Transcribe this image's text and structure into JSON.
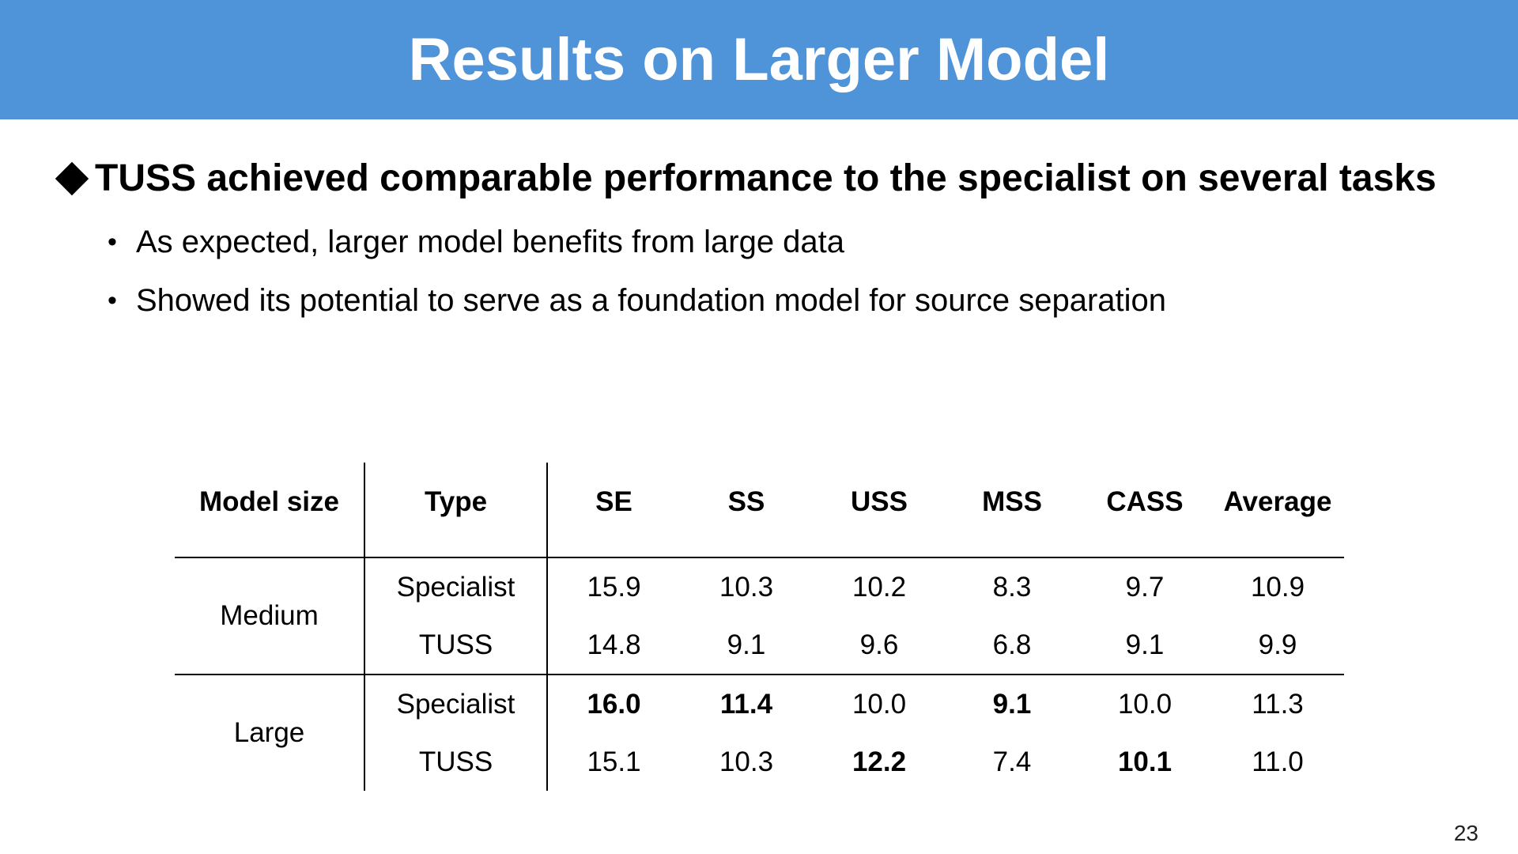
{
  "title": "Results on Larger Model",
  "headline": "TUSS achieved comparable performance to the specialist on several tasks",
  "bullets": [
    "As expected, larger model benefits from large data",
    "Showed its potential to serve as a foundation model for source separation"
  ],
  "table": {
    "headers": [
      "Model size",
      "Type",
      "SE",
      "SS",
      "USS",
      "MSS",
      "CASS",
      "Average"
    ],
    "groups": [
      {
        "size": "Medium",
        "rows": [
          {
            "type": "Specialist",
            "values": [
              "15.9",
              "10.3",
              "10.2",
              "8.3",
              "9.7",
              "10.9"
            ],
            "bold": [
              false,
              false,
              false,
              false,
              false,
              false
            ]
          },
          {
            "type": "TUSS",
            "values": [
              "14.8",
              "9.1",
              "9.6",
              "6.8",
              "9.1",
              "9.9"
            ],
            "bold": [
              false,
              false,
              false,
              false,
              false,
              false
            ]
          }
        ]
      },
      {
        "size": "Large",
        "rows": [
          {
            "type": "Specialist",
            "values": [
              "16.0",
              "11.4",
              "10.0",
              "9.1",
              "10.0",
              "11.3"
            ],
            "bold": [
              true,
              true,
              false,
              true,
              false,
              false
            ]
          },
          {
            "type": "TUSS",
            "values": [
              "15.1",
              "10.3",
              "12.2",
              "7.4",
              "10.1",
              "11.0"
            ],
            "bold": [
              false,
              false,
              true,
              false,
              true,
              false
            ]
          }
        ]
      }
    ]
  },
  "page_number": "23",
  "colors": {
    "title_bar": "#4f93d8",
    "title_text": "#ffffff"
  }
}
